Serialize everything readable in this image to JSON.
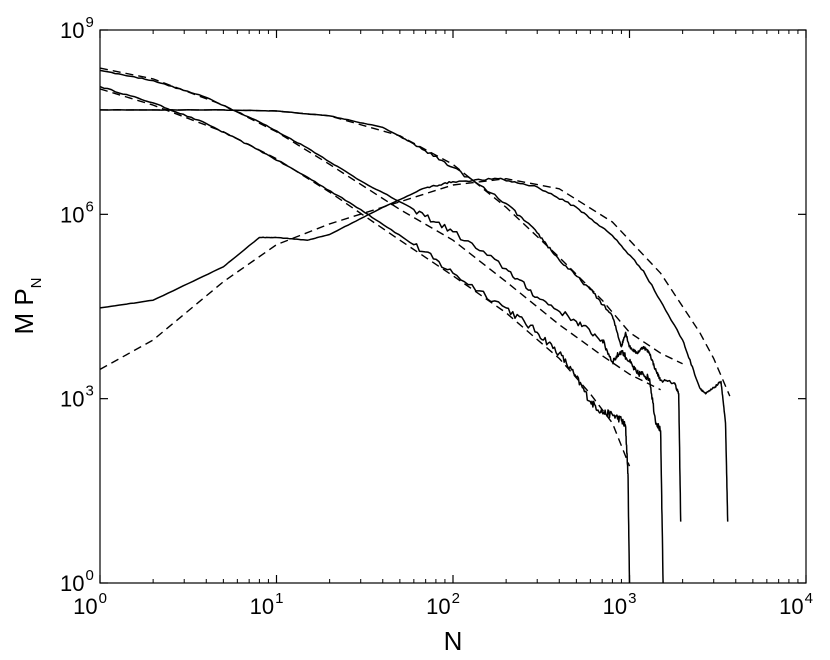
{
  "chart_data": {
    "type": "line",
    "title": "",
    "xlabel": "N",
    "ylabel_main": "M P",
    "ylabel_sub": "N",
    "x_scale": "log",
    "y_scale": "log",
    "xlim": [
      1,
      10000
    ],
    "ylim": [
      1,
      1000000000
    ],
    "grid": false,
    "x_ticks": [
      {
        "value": 1,
        "base": "10",
        "exp": "0"
      },
      {
        "value": 10,
        "base": "10",
        "exp": "1"
      },
      {
        "value": 100,
        "base": "10",
        "exp": "2"
      },
      {
        "value": 1000,
        "base": "10",
        "exp": "3"
      },
      {
        "value": 10000,
        "base": "10",
        "exp": "4"
      }
    ],
    "y_ticks": [
      {
        "value": 1,
        "base": "10",
        "exp": "0"
      },
      {
        "value": 1000,
        "base": "10",
        "exp": "3"
      },
      {
        "value": 1000000,
        "base": "10",
        "exp": "6"
      },
      {
        "value": 1000000000,
        "base": "10",
        "exp": "9"
      }
    ],
    "series": [
      {
        "style": "solid",
        "noise": 0.12,
        "points": [
          [
            1,
            120000000
          ],
          [
            2,
            65000000
          ],
          [
            4,
            30000000
          ],
          [
            8,
            11000000
          ],
          [
            15,
            4000000
          ],
          [
            30,
            1200000
          ],
          [
            60,
            320000
          ],
          [
            100,
            110000
          ],
          [
            200,
            30000
          ],
          [
            300,
            12000
          ],
          [
            400,
            5500
          ],
          [
            500,
            2200
          ],
          [
            600,
            900
          ],
          [
            700,
            600
          ],
          [
            800,
            550
          ],
          [
            900,
            450
          ],
          [
            950,
            350
          ],
          [
            980,
            60
          ],
          [
            1000,
            1
          ]
        ]
      },
      {
        "style": "dashed",
        "points": [
          [
            1,
            110000000
          ],
          [
            2,
            60000000
          ],
          [
            5,
            22000000
          ],
          [
            10,
            8000000
          ],
          [
            20,
            2300000
          ],
          [
            50,
            380000
          ],
          [
            100,
            100000
          ],
          [
            200,
            25000
          ],
          [
            400,
            4500
          ],
          [
            600,
            1200
          ],
          [
            800,
            400
          ],
          [
            1000,
            80
          ]
        ]
      },
      {
        "style": "solid",
        "noise": 0.1,
        "points": [
          [
            1,
            220000000
          ],
          [
            2,
            150000000
          ],
          [
            4,
            80000000
          ],
          [
            8,
            32000000
          ],
          [
            15,
            12000000
          ],
          [
            30,
            3500000
          ],
          [
            60,
            1200000
          ],
          [
            100,
            520000
          ],
          [
            200,
            130000
          ],
          [
            300,
            45000
          ],
          [
            500,
            18000
          ],
          [
            700,
            9000
          ],
          [
            800,
            4000
          ],
          [
            900,
            6000
          ],
          [
            1000,
            4000
          ],
          [
            1100,
            2600
          ],
          [
            1200,
            2500
          ],
          [
            1300,
            2100
          ],
          [
            1400,
            450
          ],
          [
            1500,
            300
          ],
          [
            1550,
            1
          ]
        ]
      },
      {
        "style": "dashed",
        "points": [
          [
            1,
            240000000
          ],
          [
            2,
            160000000
          ],
          [
            5,
            60000000
          ],
          [
            10,
            22000000
          ],
          [
            20,
            6500000
          ],
          [
            50,
            1200000
          ],
          [
            100,
            380000
          ],
          [
            200,
            80000
          ],
          [
            400,
            16000
          ],
          [
            700,
            5000
          ],
          [
            1000,
            2500
          ],
          [
            1500,
            1400
          ]
        ]
      },
      {
        "style": "solid",
        "noise": 0.05,
        "points": [
          [
            1,
            50000000
          ],
          [
            5,
            50000000
          ],
          [
            10,
            48000000
          ],
          [
            20,
            40000000
          ],
          [
            40,
            26000000
          ],
          [
            60,
            14000000
          ],
          [
            100,
            5800000
          ],
          [
            200,
            1500000
          ],
          [
            300,
            500000
          ],
          [
            400,
            180000
          ],
          [
            600,
            60000
          ],
          [
            800,
            22000
          ],
          [
            900,
            7000
          ],
          [
            950,
            12000
          ],
          [
            1000,
            7000
          ],
          [
            1100,
            5500
          ],
          [
            1200,
            7000
          ],
          [
            1300,
            5500
          ],
          [
            1400,
            3000
          ],
          [
            1500,
            2000
          ],
          [
            1800,
            1800
          ],
          [
            1900,
            1200
          ],
          [
            1950,
            10
          ]
        ]
      },
      {
        "style": "dashed",
        "points": [
          [
            1,
            50000000
          ],
          [
            5,
            50000000
          ],
          [
            10,
            48000000
          ],
          [
            20,
            40000000
          ],
          [
            50,
            19000000
          ],
          [
            100,
            6500000
          ],
          [
            200,
            1300000
          ],
          [
            400,
            200000
          ],
          [
            700,
            40000
          ],
          [
            1000,
            12000
          ],
          [
            1500,
            5500
          ],
          [
            2000,
            3700
          ]
        ]
      },
      {
        "style": "solid",
        "noise": 0.03,
        "points": [
          [
            1,
            30000
          ],
          [
            2,
            40000
          ],
          [
            5,
            140000
          ],
          [
            8,
            420000
          ],
          [
            10,
            420000
          ],
          [
            15,
            380000
          ],
          [
            20,
            470000
          ],
          [
            40,
            1300000
          ],
          [
            70,
            2700000
          ],
          [
            100,
            3400000
          ],
          [
            180,
            3800000
          ],
          [
            300,
            2800000
          ],
          [
            500,
            1300000
          ],
          [
            800,
            450000
          ],
          [
            1200,
            120000
          ],
          [
            2000,
            9000
          ],
          [
            2500,
            1500
          ],
          [
            2700,
            1200
          ],
          [
            3000,
            1500
          ],
          [
            3300,
            1900
          ],
          [
            3500,
            400
          ],
          [
            3600,
            10
          ]
        ]
      },
      {
        "style": "dashed",
        "points": [
          [
            1,
            3000
          ],
          [
            2,
            9000
          ],
          [
            5,
            80000
          ],
          [
            10,
            320000
          ],
          [
            20,
            700000
          ],
          [
            50,
            1600000
          ],
          [
            100,
            3000000
          ],
          [
            200,
            3800000
          ],
          [
            400,
            2600000
          ],
          [
            800,
            750000
          ],
          [
            1500,
            110000
          ],
          [
            2500,
            12000
          ],
          [
            3000,
            4500
          ],
          [
            3700,
            1100
          ]
        ]
      }
    ]
  }
}
